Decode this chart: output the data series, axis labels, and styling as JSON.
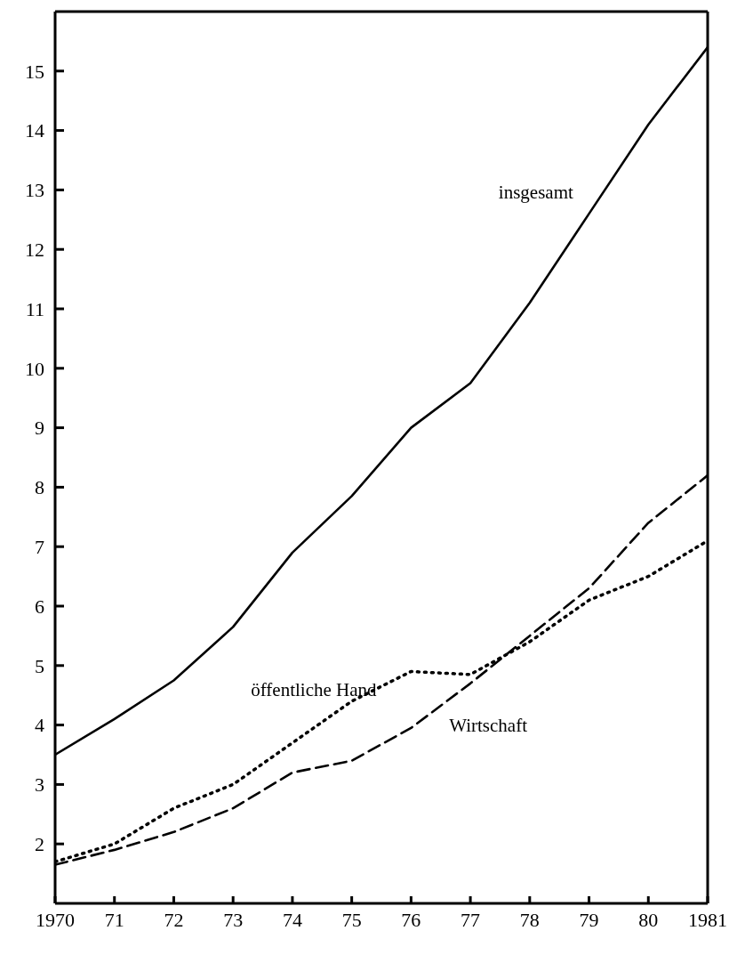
{
  "chart_data": {
    "type": "line",
    "x": [
      1970,
      1971,
      1972,
      1973,
      1974,
      1975,
      1976,
      1977,
      1978,
      1979,
      1980,
      1981
    ],
    "series": [
      {
        "name": "insgesamt",
        "color": "#000000",
        "line_style": "solid",
        "values": [
          3.5,
          4.1,
          4.75,
          5.65,
          6.9,
          7.85,
          9.0,
          9.75,
          11.1,
          12.6,
          14.1,
          15.4
        ]
      },
      {
        "name": "öffentliche Hand",
        "color": "#000000",
        "line_style": "dotted",
        "values": [
          1.7,
          2.0,
          2.6,
          3.0,
          3.7,
          4.4,
          4.9,
          4.85,
          5.4,
          6.1,
          6.5,
          7.1
        ]
      },
      {
        "name": "Wirtschaft",
        "color": "#000000",
        "line_style": "dashed",
        "values": [
          1.65,
          1.9,
          2.2,
          2.6,
          3.2,
          3.4,
          3.95,
          4.7,
          5.5,
          6.3,
          7.4,
          8.2
        ]
      }
    ],
    "xlim": [
      1970,
      1981
    ],
    "xticks": [
      1970,
      {
        "value": 1971,
        "label": "71"
      },
      {
        "value": 1972,
        "label": "72"
      },
      {
        "value": 1973,
        "label": "73"
      },
      {
        "value": 1974,
        "label": "74"
      },
      {
        "value": 1975,
        "label": "75"
      },
      {
        "value": 1976,
        "label": "76"
      },
      {
        "value": 1977,
        "label": "77"
      },
      {
        "value": 1978,
        "label": "78"
      },
      {
        "value": 1979,
        "label": "79"
      },
      {
        "value": 1980,
        "label": "80"
      },
      1981
    ],
    "ylim": [
      1,
      16
    ],
    "yticks": [
      2,
      3,
      4,
      5,
      6,
      7,
      8,
      9,
      10,
      11,
      12,
      13,
      14,
      15
    ],
    "grid": false,
    "legend": false,
    "marker": "none"
  }
}
